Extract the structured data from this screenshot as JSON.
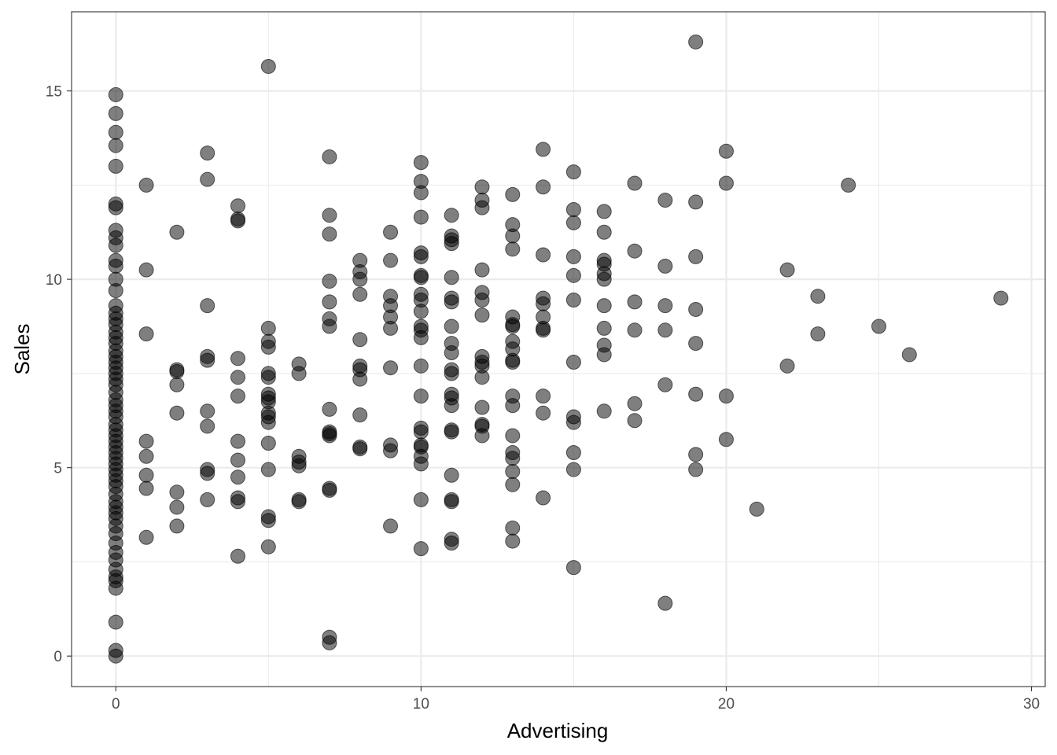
{
  "chart_data": {
    "type": "scatter",
    "title": "",
    "xlabel": "Advertising",
    "ylabel": "Sales",
    "xlim": [
      -1.45,
      30.45
    ],
    "ylim": [
      -0.81,
      17.1
    ],
    "x_ticks": [
      0,
      10,
      20,
      30
    ],
    "y_ticks": [
      0,
      5,
      10,
      15
    ],
    "grid": true,
    "legend": "none",
    "colors": {
      "point_fill": "#000000",
      "point_opacity": 0.5,
      "grid": "#ebebeb",
      "panel_border": "#333333",
      "tick_label": "#4d4d4d"
    },
    "points": [
      [
        0,
        14.9
      ],
      [
        0,
        14.4
      ],
      [
        0,
        13.9
      ],
      [
        0,
        13.55
      ],
      [
        0,
        13.0
      ],
      [
        0,
        12.0
      ],
      [
        0,
        11.9
      ],
      [
        0,
        11.3
      ],
      [
        0,
        11.1
      ],
      [
        0,
        10.9
      ],
      [
        0,
        10.5
      ],
      [
        0,
        10.35
      ],
      [
        0,
        10.0
      ],
      [
        0,
        9.7
      ],
      [
        0,
        9.3
      ],
      [
        0,
        9.1
      ],
      [
        0,
        8.95
      ],
      [
        0,
        8.8
      ],
      [
        0,
        8.6
      ],
      [
        0,
        8.45
      ],
      [
        0,
        8.3
      ],
      [
        0,
        8.1
      ],
      [
        0,
        7.95
      ],
      [
        0,
        7.8
      ],
      [
        0,
        7.65
      ],
      [
        0,
        7.5
      ],
      [
        0,
        7.35
      ],
      [
        0,
        7.2
      ],
      [
        0,
        7.0
      ],
      [
        0,
        6.8
      ],
      [
        0,
        6.65
      ],
      [
        0,
        6.5
      ],
      [
        0,
        6.35
      ],
      [
        0,
        6.15
      ],
      [
        0,
        6.0
      ],
      [
        0,
        5.85
      ],
      [
        0,
        5.7
      ],
      [
        0,
        5.55
      ],
      [
        0,
        5.4
      ],
      [
        0,
        5.25
      ],
      [
        0,
        5.1
      ],
      [
        0,
        4.95
      ],
      [
        0,
        4.8
      ],
      [
        0,
        4.65
      ],
      [
        0,
        4.5
      ],
      [
        0,
        4.3
      ],
      [
        0,
        4.1
      ],
      [
        0,
        3.95
      ],
      [
        0,
        3.8
      ],
      [
        0,
        3.65
      ],
      [
        0,
        3.45
      ],
      [
        0,
        3.25
      ],
      [
        0,
        3.0
      ],
      [
        0,
        2.75
      ],
      [
        0,
        2.55
      ],
      [
        0,
        2.3
      ],
      [
        0,
        2.1
      ],
      [
        0,
        2.0
      ],
      [
        0,
        1.8
      ],
      [
        0,
        0.9
      ],
      [
        0,
        0.15
      ],
      [
        0,
        0.0
      ],
      [
        1,
        12.5
      ],
      [
        1,
        10.25
      ],
      [
        1,
        8.55
      ],
      [
        1,
        5.7
      ],
      [
        1,
        5.3
      ],
      [
        1,
        4.8
      ],
      [
        1,
        4.45
      ],
      [
        1,
        3.15
      ],
      [
        2,
        11.25
      ],
      [
        2,
        7.6
      ],
      [
        2,
        7.55
      ],
      [
        2,
        7.2
      ],
      [
        2,
        6.45
      ],
      [
        2,
        4.35
      ],
      [
        2,
        3.95
      ],
      [
        2,
        3.45
      ],
      [
        3,
        13.35
      ],
      [
        3,
        12.65
      ],
      [
        3,
        9.3
      ],
      [
        3,
        7.95
      ],
      [
        3,
        7.85
      ],
      [
        3,
        6.5
      ],
      [
        3,
        6.1
      ],
      [
        3,
        4.95
      ],
      [
        3,
        4.85
      ],
      [
        3,
        4.15
      ],
      [
        4,
        11.95
      ],
      [
        4,
        11.6
      ],
      [
        4,
        11.55
      ],
      [
        4,
        7.9
      ],
      [
        4,
        7.4
      ],
      [
        4,
        6.9
      ],
      [
        4,
        5.7
      ],
      [
        4,
        5.2
      ],
      [
        4,
        4.75
      ],
      [
        4,
        4.2
      ],
      [
        4,
        4.1
      ],
      [
        4,
        2.65
      ],
      [
        5,
        15.65
      ],
      [
        5,
        8.7
      ],
      [
        5,
        8.35
      ],
      [
        5,
        8.2
      ],
      [
        5,
        7.5
      ],
      [
        5,
        7.4
      ],
      [
        5,
        6.95
      ],
      [
        5,
        6.85
      ],
      [
        5,
        6.75
      ],
      [
        5,
        6.45
      ],
      [
        5,
        6.35
      ],
      [
        5,
        6.2
      ],
      [
        5,
        5.65
      ],
      [
        5,
        4.95
      ],
      [
        5,
        3.7
      ],
      [
        5,
        3.6
      ],
      [
        5,
        2.9
      ],
      [
        6,
        7.75
      ],
      [
        6,
        7.5
      ],
      [
        6,
        5.3
      ],
      [
        6,
        5.15
      ],
      [
        6,
        5.05
      ],
      [
        6,
        4.15
      ],
      [
        6,
        4.1
      ],
      [
        7,
        13.25
      ],
      [
        7,
        11.7
      ],
      [
        7,
        11.2
      ],
      [
        7,
        9.95
      ],
      [
        7,
        9.4
      ],
      [
        7,
        8.95
      ],
      [
        7,
        8.75
      ],
      [
        7,
        6.55
      ],
      [
        7,
        5.95
      ],
      [
        7,
        5.9
      ],
      [
        7,
        5.85
      ],
      [
        7,
        4.45
      ],
      [
        7,
        4.4
      ],
      [
        7,
        0.5
      ],
      [
        7,
        0.35
      ],
      [
        8,
        10.5
      ],
      [
        8,
        10.2
      ],
      [
        8,
        10.0
      ],
      [
        8,
        9.6
      ],
      [
        8,
        8.4
      ],
      [
        8,
        7.7
      ],
      [
        8,
        7.6
      ],
      [
        8,
        7.35
      ],
      [
        8,
        6.4
      ],
      [
        8,
        5.55
      ],
      [
        8,
        5.5
      ],
      [
        9,
        11.25
      ],
      [
        9,
        10.5
      ],
      [
        9,
        9.55
      ],
      [
        9,
        9.3
      ],
      [
        9,
        9.0
      ],
      [
        9,
        8.7
      ],
      [
        9,
        7.65
      ],
      [
        9,
        5.6
      ],
      [
        9,
        5.45
      ],
      [
        9,
        3.45
      ],
      [
        10,
        13.1
      ],
      [
        10,
        12.6
      ],
      [
        10,
        12.3
      ],
      [
        10,
        11.65
      ],
      [
        10,
        10.7
      ],
      [
        10,
        10.6
      ],
      [
        10,
        10.1
      ],
      [
        10,
        10.05
      ],
      [
        10,
        9.6
      ],
      [
        10,
        9.45
      ],
      [
        10,
        9.15
      ],
      [
        10,
        8.75
      ],
      [
        10,
        8.65
      ],
      [
        10,
        8.45
      ],
      [
        10,
        7.7
      ],
      [
        10,
        6.9
      ],
      [
        10,
        6.05
      ],
      [
        10,
        5.95
      ],
      [
        10,
        5.6
      ],
      [
        10,
        5.55
      ],
      [
        10,
        5.3
      ],
      [
        10,
        5.1
      ],
      [
        10,
        4.15
      ],
      [
        10,
        2.85
      ],
      [
        11,
        11.7
      ],
      [
        11,
        11.15
      ],
      [
        11,
        11.05
      ],
      [
        11,
        10.95
      ],
      [
        11,
        10.05
      ],
      [
        11,
        9.5
      ],
      [
        11,
        9.4
      ],
      [
        11,
        8.75
      ],
      [
        11,
        8.3
      ],
      [
        11,
        8.05
      ],
      [
        11,
        7.6
      ],
      [
        11,
        7.5
      ],
      [
        11,
        6.95
      ],
      [
        11,
        6.85
      ],
      [
        11,
        6.65
      ],
      [
        11,
        6.0
      ],
      [
        11,
        5.95
      ],
      [
        11,
        4.8
      ],
      [
        11,
        4.15
      ],
      [
        11,
        4.1
      ],
      [
        11,
        3.1
      ],
      [
        11,
        3.0
      ],
      [
        12,
        12.45
      ],
      [
        12,
        12.1
      ],
      [
        12,
        11.9
      ],
      [
        12,
        10.25
      ],
      [
        12,
        9.65
      ],
      [
        12,
        9.45
      ],
      [
        12,
        9.05
      ],
      [
        12,
        7.95
      ],
      [
        12,
        7.8
      ],
      [
        12,
        7.7
      ],
      [
        12,
        7.4
      ],
      [
        12,
        6.6
      ],
      [
        12,
        6.15
      ],
      [
        12,
        6.1
      ],
      [
        12,
        5.85
      ],
      [
        13,
        12.25
      ],
      [
        13,
        11.45
      ],
      [
        13,
        11.15
      ],
      [
        13,
        10.8
      ],
      [
        13,
        9.0
      ],
      [
        13,
        8.8
      ],
      [
        13,
        8.75
      ],
      [
        13,
        8.35
      ],
      [
        13,
        8.15
      ],
      [
        13,
        7.85
      ],
      [
        13,
        7.8
      ],
      [
        13,
        6.9
      ],
      [
        13,
        6.65
      ],
      [
        13,
        5.85
      ],
      [
        13,
        5.4
      ],
      [
        13,
        5.25
      ],
      [
        13,
        4.9
      ],
      [
        13,
        4.55
      ],
      [
        13,
        3.4
      ],
      [
        13,
        3.05
      ],
      [
        14,
        13.45
      ],
      [
        14,
        12.45
      ],
      [
        14,
        10.65
      ],
      [
        14,
        9.5
      ],
      [
        14,
        9.35
      ],
      [
        14,
        9.0
      ],
      [
        14,
        8.7
      ],
      [
        14,
        8.65
      ],
      [
        14,
        6.9
      ],
      [
        14,
        6.45
      ],
      [
        14,
        4.2
      ],
      [
        15,
        12.85
      ],
      [
        15,
        11.85
      ],
      [
        15,
        11.5
      ],
      [
        15,
        10.6
      ],
      [
        15,
        10.1
      ],
      [
        15,
        9.45
      ],
      [
        15,
        7.8
      ],
      [
        15,
        6.35
      ],
      [
        15,
        6.2
      ],
      [
        15,
        5.4
      ],
      [
        15,
        4.95
      ],
      [
        15,
        2.35
      ],
      [
        16,
        11.8
      ],
      [
        16,
        11.25
      ],
      [
        16,
        10.5
      ],
      [
        16,
        10.4
      ],
      [
        16,
        10.15
      ],
      [
        16,
        10.0
      ],
      [
        16,
        9.3
      ],
      [
        16,
        8.7
      ],
      [
        16,
        8.25
      ],
      [
        16,
        8.0
      ],
      [
        16,
        6.5
      ],
      [
        17,
        12.55
      ],
      [
        17,
        10.75
      ],
      [
        17,
        9.4
      ],
      [
        17,
        8.65
      ],
      [
        17,
        6.7
      ],
      [
        17,
        6.25
      ],
      [
        18,
        12.1
      ],
      [
        18,
        10.35
      ],
      [
        18,
        9.3
      ],
      [
        18,
        8.65
      ],
      [
        18,
        7.2
      ],
      [
        18,
        1.4
      ],
      [
        19,
        16.3
      ],
      [
        19,
        12.05
      ],
      [
        19,
        10.6
      ],
      [
        19,
        9.2
      ],
      [
        19,
        8.3
      ],
      [
        19,
        6.95
      ],
      [
        19,
        5.35
      ],
      [
        19,
        4.95
      ],
      [
        20,
        13.4
      ],
      [
        20,
        12.55
      ],
      [
        20,
        6.9
      ],
      [
        20,
        5.75
      ],
      [
        21,
        3.9
      ],
      [
        22,
        10.25
      ],
      [
        22,
        7.7
      ],
      [
        23,
        9.55
      ],
      [
        23,
        8.55
      ],
      [
        24,
        12.5
      ],
      [
        25,
        8.75
      ],
      [
        26,
        8.0
      ],
      [
        29,
        9.5
      ]
    ]
  }
}
